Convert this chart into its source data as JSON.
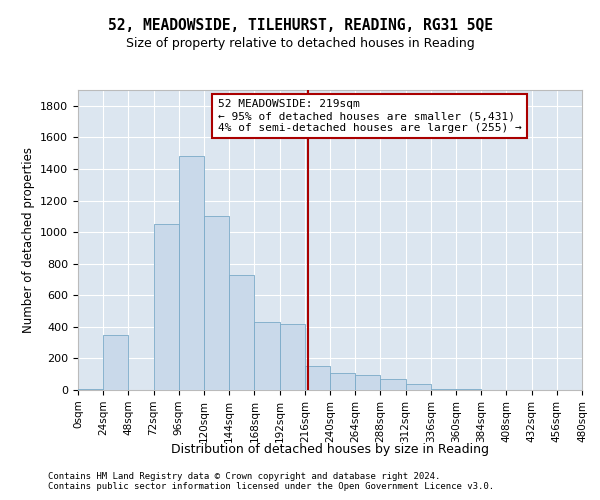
{
  "title": "52, MEADOWSIDE, TILEHURST, READING, RG31 5QE",
  "subtitle": "Size of property relative to detached houses in Reading",
  "xlabel": "Distribution of detached houses by size in Reading",
  "ylabel": "Number of detached properties",
  "bar_color": "#c9d9ea",
  "bar_edge_color": "#7aaac8",
  "background_color": "#dce6f0",
  "grid_color": "#ffffff",
  "annotation_line_color": "#aa0000",
  "annotation_box_edgecolor": "#aa0000",
  "annotation_text_line1": "52 MEADOWSIDE: 219sqm",
  "annotation_text_line2": "← 95% of detached houses are smaller (5,431)",
  "annotation_text_line3": "4% of semi-detached houses are larger (255) →",
  "property_value": 219,
  "bins_left": [
    0,
    24,
    48,
    72,
    96,
    120,
    144,
    168,
    192,
    216,
    240,
    264,
    288,
    312,
    336,
    360,
    384,
    408,
    432,
    456
  ],
  "bin_width": 24,
  "counts": [
    5,
    350,
    2,
    1050,
    1480,
    1100,
    730,
    430,
    420,
    150,
    110,
    95,
    70,
    40,
    5,
    5,
    3,
    2,
    1,
    1
  ],
  "xlim": [
    0,
    480
  ],
  "ylim": [
    0,
    1900
  ],
  "yticks": [
    0,
    200,
    400,
    600,
    800,
    1000,
    1200,
    1400,
    1600,
    1800
  ],
  "xtick_labels": [
    "0sqm",
    "24sqm",
    "48sqm",
    "72sqm",
    "96sqm",
    "120sqm",
    "144sqm",
    "168sqm",
    "192sqm",
    "216sqm",
    "240sqm",
    "264sqm",
    "288sqm",
    "312sqm",
    "336sqm",
    "360sqm",
    "384sqm",
    "408sqm",
    "432sqm",
    "456sqm",
    "480sqm"
  ],
  "xtick_positions": [
    0,
    24,
    48,
    72,
    96,
    120,
    144,
    168,
    192,
    216,
    240,
    264,
    288,
    312,
    336,
    360,
    384,
    408,
    432,
    456,
    480
  ],
  "footnote1": "Contains HM Land Registry data © Crown copyright and database right 2024.",
  "footnote2": "Contains public sector information licensed under the Open Government Licence v3.0."
}
